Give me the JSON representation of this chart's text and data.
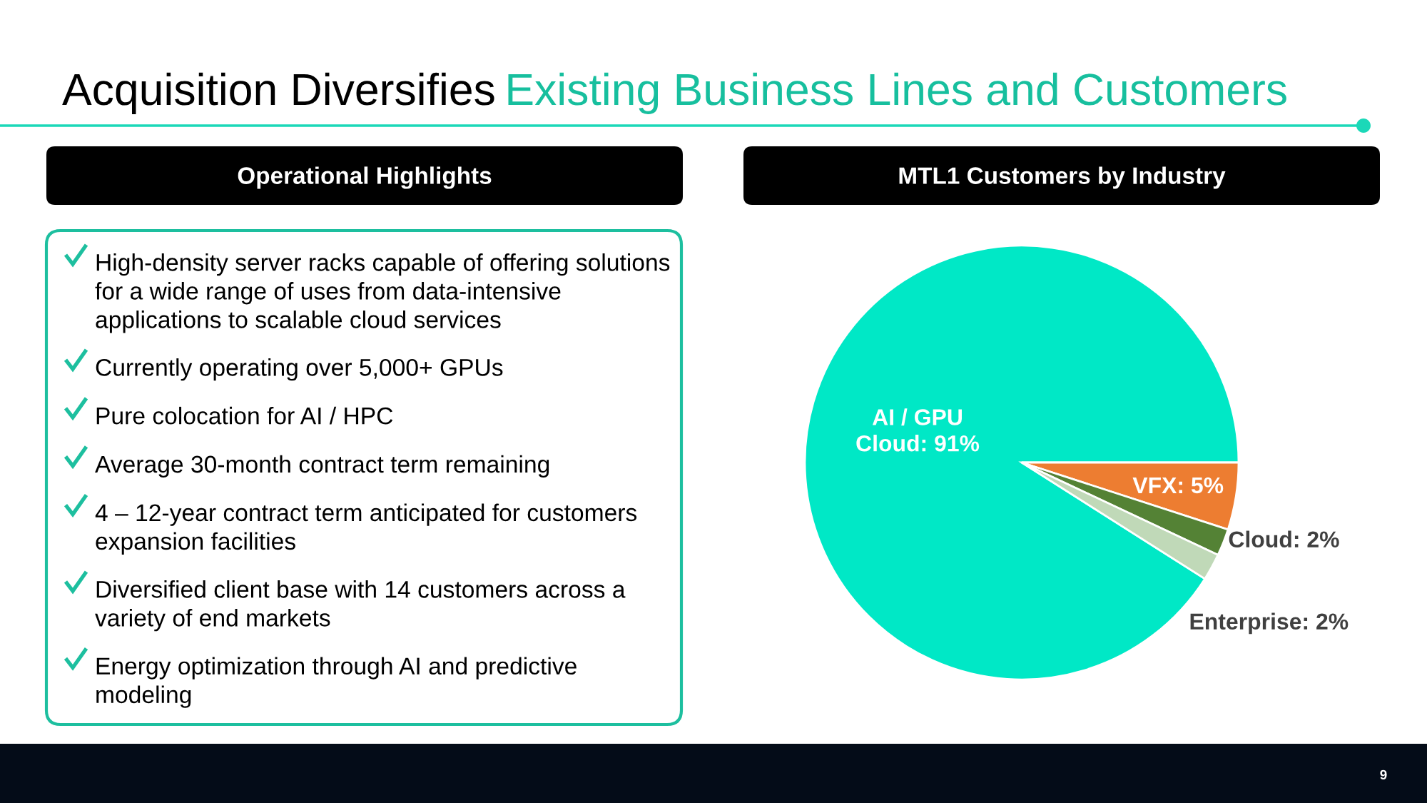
{
  "chart_data": [
    {
      "type": "other",
      "title": "Acquisition Diversifies",
      "subtitle": "Existing Business Lines and Customers",
      "annotations": [
        "9"
      ]
    },
    {
      "type": "other",
      "title": "Operational Highlights",
      "annotations": [
        "High-density server racks capable of offering solutions\nfor a wide range of uses from data-intensive\napplications to scalable cloud services",
        "Currently operating over 5,000+ GPUs",
        "Pure colocation for AI / HPC",
        "Average 30-month contract term remaining",
        "4 – 12-year contract term anticipated for customers\nexpansion facilities",
        "Diversified client base with 14 customers across a\nvariety of end markets",
        "Energy optimization through AI and predictive\nmodeling"
      ]
    },
    {
      "type": "pie",
      "title": "MTL1 Customers by Industry",
      "categories": [
        "AI / GPU\nCloud",
        "VFX",
        "Cloud",
        "Enterprise"
      ],
      "values": [
        91,
        5,
        2,
        2
      ],
      "value_labels": [
        "91%",
        "5%",
        "2%",
        "2%"
      ],
      "colors": [
        "#00e8c6",
        "#ed7d31",
        "#548235",
        "#c0d9b8"
      ]
    }
  ]
}
